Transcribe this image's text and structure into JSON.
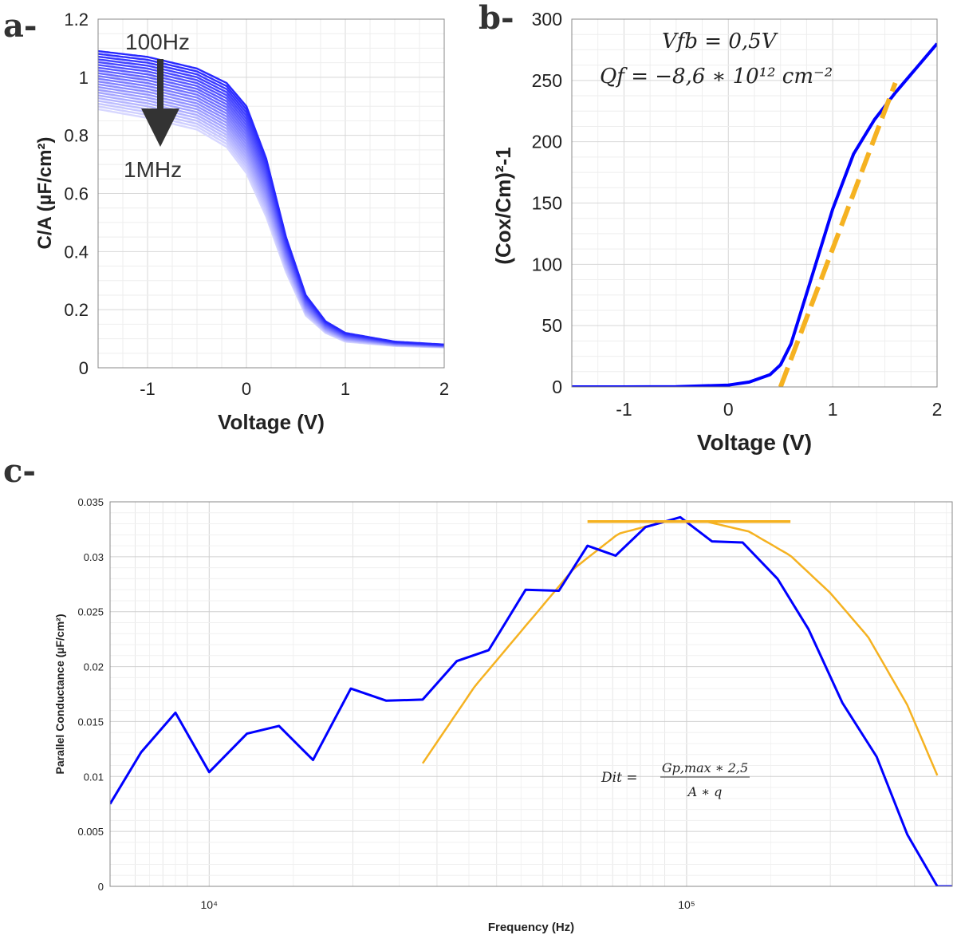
{
  "panels": {
    "a": "a-",
    "b": "b-",
    "c": "c-"
  },
  "chart_data": [
    {
      "id": "a",
      "type": "line",
      "xlabel": "Voltage (V)",
      "ylabel": "C/A (µF/cm²)",
      "xlim": [
        -1.5,
        2
      ],
      "ylim": [
        0,
        1.2
      ],
      "xticks": [
        "-1",
        "0",
        "1",
        "2"
      ],
      "yticks": [
        "0",
        "0.2",
        "0.4",
        "0.6",
        "0.8",
        "1",
        "1.2"
      ],
      "grid": true,
      "annotation_top": "100Hz",
      "annotation_bottom": "1MHz",
      "series_hi": {
        "x": [
          -1.5,
          -1,
          -0.5,
          -0.2,
          0,
          0.2,
          0.4,
          0.6,
          0.8,
          1,
          1.5,
          2
        ],
        "y": [
          1.09,
          1.07,
          1.03,
          0.98,
          0.9,
          0.72,
          0.45,
          0.25,
          0.16,
          0.12,
          0.09,
          0.08
        ]
      },
      "series_lo": {
        "x": [
          -1.5,
          -1,
          -0.5,
          -0.2,
          0,
          0.2,
          0.4,
          0.6,
          0.8,
          1,
          1.5,
          2
        ],
        "y": [
          0.89,
          0.86,
          0.82,
          0.76,
          0.67,
          0.52,
          0.33,
          0.18,
          0.12,
          0.09,
          0.075,
          0.07
        ]
      },
      "color": "#0000ff"
    },
    {
      "id": "b",
      "type": "line",
      "xlabel": "Voltage (V)",
      "ylabel": "(Cox/Cm)²-1",
      "xlim": [
        -1.5,
        2
      ],
      "ylim": [
        0,
        300
      ],
      "xticks": [
        "-1",
        "0",
        "1",
        "2"
      ],
      "yticks": [
        "0",
        "50",
        "100",
        "150",
        "200",
        "250",
        "300"
      ],
      "grid": true,
      "eq1": "Vfb = 0,5V",
      "eq2": "Qf = −8,6 ∗ 10¹² cm⁻²",
      "series": {
        "x": [
          -1.5,
          -1,
          -0.5,
          0,
          0.2,
          0.4,
          0.5,
          0.6,
          0.8,
          1,
          1.2,
          1.4,
          1.6,
          1.8,
          2
        ],
        "y": [
          0,
          0,
          0.2,
          1.5,
          4,
          10,
          18,
          35,
          90,
          145,
          190,
          218,
          240,
          260,
          280
        ]
      },
      "fit": {
        "x": [
          0.5,
          1.6
        ],
        "y": [
          0,
          248
        ]
      },
      "color": "#0000ff",
      "fit_color": "#f5b221"
    },
    {
      "id": "c",
      "type": "line",
      "xlabel": "Frequency (Hz)",
      "ylabel": "Parallel Conductance (µF/cm²)",
      "xscale": "log",
      "xlim": [
        6200,
        360000
      ],
      "ylim": [
        0,
        0.035
      ],
      "xticks": [
        "10⁴",
        "10⁵"
      ],
      "yticks": [
        "0",
        "0.005",
        "0.01",
        "0.015",
        "0.02",
        "0.025",
        "0.03",
        "0.035"
      ],
      "grid": true,
      "formula_lhs": "Dit =",
      "formula_num": "Gp,max ∗ 2,5",
      "formula_den": "A ∗ q",
      "series": {
        "x": [
          6200,
          7200,
          8500,
          10000,
          12000,
          14000,
          16500,
          19800,
          23500,
          28000,
          33000,
          38500,
          46000,
          54000,
          62000,
          71000,
          82000,
          97000,
          113000,
          131000,
          155000,
          180000,
          212000,
          250000,
          290000,
          335000,
          360000
        ],
        "y": [
          0.0075,
          0.0122,
          0.0158,
          0.0104,
          0.0139,
          0.0146,
          0.0115,
          0.018,
          0.0169,
          0.017,
          0.0205,
          0.0215,
          0.027,
          0.0269,
          0.031,
          0.0301,
          0.0327,
          0.0336,
          0.0314,
          0.0313,
          0.028,
          0.0234,
          0.0167,
          0.0118,
          0.0047,
          0.0,
          0.0
        ]
      },
      "fit_curve": {
        "x": [
          28000,
          36000,
          46000,
          58000,
          72000,
          90000,
          110000,
          135000,
          165000,
          200000,
          240000,
          290000,
          335000
        ],
        "y": [
          0.0112,
          0.0182,
          0.0237,
          0.0289,
          0.0321,
          0.0332,
          0.0332,
          0.0323,
          0.0301,
          0.0267,
          0.0227,
          0.0165,
          0.0101
        ]
      },
      "max_line": {
        "x": [
          62000,
          165000
        ],
        "y": [
          0.0332,
          0.0332
        ]
      },
      "color": "#0000ff",
      "fit_color": "#f5b221"
    }
  ]
}
